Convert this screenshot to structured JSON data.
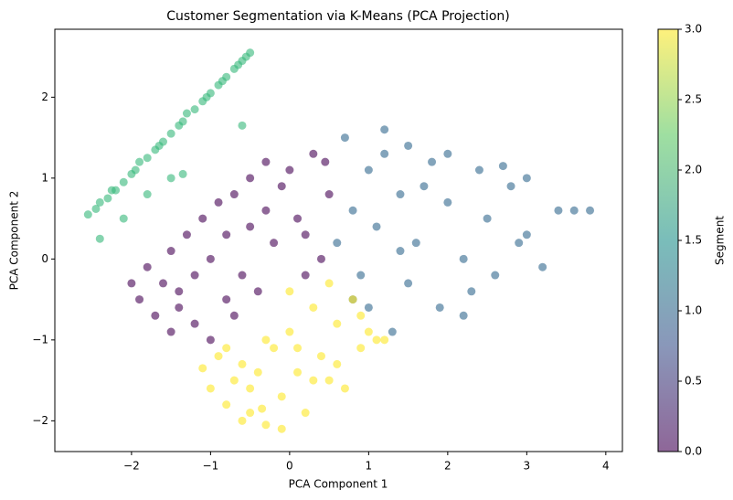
{
  "chart_data": {
    "type": "scatter",
    "title": "Customer Segmentation via K-Means (PCA Projection)",
    "x_label": "PCA Component 1",
    "y_label": "PCA Component 2",
    "xlim": [
      -2.97,
      4.21
    ],
    "ylim": [
      -2.38,
      2.84
    ],
    "xticks": [
      {
        "value": -2,
        "label": "−2"
      },
      {
        "value": -1,
        "label": "−1"
      },
      0,
      1,
      2,
      3,
      4
    ],
    "yticks": [
      {
        "value": -2,
        "label": "−2"
      },
      {
        "value": -1,
        "label": "−1"
      },
      0,
      1,
      2
    ],
    "opacity": 0.6,
    "series": [
      {
        "color": "#440154",
        "x": [
          -2.0,
          -1.9,
          -1.8,
          -1.7,
          -1.6,
          -1.5,
          -1.5,
          -1.4,
          -1.3,
          -1.2,
          -1.2,
          -1.1,
          -1.0,
          -1.0,
          -0.9,
          -0.8,
          -0.8,
          -0.7,
          -0.6,
          -0.5,
          -0.5,
          -0.4,
          -0.3,
          -0.2,
          -0.1,
          0.0,
          0.1,
          0.2,
          0.3,
          0.4,
          0.5,
          -0.3,
          0.2,
          -1.4,
          -0.7,
          0.45
        ],
        "y": [
          -0.3,
          -0.5,
          -0.1,
          -0.7,
          -0.3,
          0.1,
          -0.9,
          -0.4,
          0.3,
          -0.8,
          -0.2,
          0.5,
          -1.0,
          0.0,
          0.7,
          -0.5,
          0.3,
          0.8,
          -0.2,
          0.4,
          1.0,
          -0.4,
          0.6,
          0.2,
          0.9,
          1.1,
          0.5,
          0.3,
          1.3,
          0.0,
          0.8,
          1.2,
          -0.2,
          -0.6,
          -0.7,
          1.2
        ]
      },
      {
        "color": "#31688e",
        "x": [
          0.6,
          0.7,
          0.8,
          0.9,
          1.0,
          1.0,
          1.1,
          1.2,
          1.3,
          1.4,
          1.5,
          1.5,
          1.6,
          1.8,
          1.9,
          2.0,
          2.0,
          2.2,
          2.3,
          2.4,
          2.5,
          2.6,
          2.8,
          3.0,
          3.0,
          3.2,
          3.4,
          3.6,
          3.8,
          1.2,
          1.7,
          2.2,
          2.7,
          0.8,
          1.4,
          2.9
        ],
        "y": [
          0.2,
          1.5,
          0.6,
          -0.2,
          1.1,
          -0.6,
          0.4,
          1.3,
          -0.9,
          0.8,
          1.4,
          -0.3,
          0.2,
          1.2,
          -0.6,
          0.7,
          1.3,
          0.0,
          -0.4,
          1.1,
          0.5,
          -0.2,
          0.9,
          0.3,
          1.0,
          -0.1,
          0.6,
          0.6,
          0.6,
          1.6,
          0.9,
          -0.7,
          1.15,
          -0.5,
          0.1,
          0.2
        ]
      },
      {
        "color": "#35b779",
        "x": [
          -2.55,
          -2.45,
          -2.4,
          -2.3,
          -2.25,
          -2.2,
          -2.1,
          -2.0,
          -1.95,
          -1.9,
          -1.8,
          -1.7,
          -1.65,
          -1.6,
          -1.5,
          -1.4,
          -1.35,
          -1.3,
          -1.2,
          -1.1,
          -1.05,
          -1.0,
          -0.9,
          -0.85,
          -0.8,
          -0.7,
          -0.65,
          -0.6,
          -0.55,
          -0.5,
          -2.4,
          -2.1,
          -1.8,
          -1.5,
          -1.35,
          -0.6
        ],
        "y": [
          0.55,
          0.62,
          0.7,
          0.75,
          0.85,
          0.85,
          0.95,
          1.05,
          1.1,
          1.2,
          1.25,
          1.35,
          1.4,
          1.45,
          1.55,
          1.65,
          1.7,
          1.8,
          1.85,
          1.95,
          2.0,
          2.05,
          2.15,
          2.2,
          2.25,
          2.35,
          2.4,
          2.45,
          2.5,
          2.55,
          0.25,
          0.5,
          0.8,
          1.0,
          1.05,
          1.65
        ]
      },
      {
        "color": "#fde725",
        "x": [
          -1.1,
          -1.0,
          -0.9,
          -0.8,
          -0.7,
          -0.6,
          -0.5,
          -0.4,
          -0.3,
          -0.2,
          -0.1,
          0.0,
          0.1,
          0.2,
          0.3,
          0.4,
          0.5,
          0.6,
          0.7,
          0.8,
          0.9,
          1.0,
          1.1,
          1.2,
          -0.8,
          -0.5,
          -0.3,
          0.1,
          0.3,
          -0.1,
          0.5,
          0.6,
          -0.6,
          0.0,
          0.9,
          -0.35
        ],
        "y": [
          -1.35,
          -1.6,
          -1.2,
          -1.8,
          -1.5,
          -1.3,
          -1.9,
          -1.4,
          -2.05,
          -1.1,
          -1.7,
          -0.9,
          -1.4,
          -1.9,
          -0.6,
          -1.2,
          -0.3,
          -0.8,
          -1.6,
          -0.5,
          -1.1,
          -0.9,
          -1.0,
          -1.0,
          -1.1,
          -1.6,
          -1.0,
          -1.1,
          -1.5,
          -2.1,
          -1.5,
          -1.3,
          -2.0,
          -0.4,
          -0.7,
          -1.85
        ]
      }
    ],
    "colorbar": {
      "label": "Segment",
      "lim": [
        0,
        3
      ],
      "ticks": [
        {
          "value": 0,
          "label": "0.0"
        },
        {
          "value": 0.5,
          "label": "0.5"
        },
        {
          "value": 1,
          "label": "1.0"
        },
        {
          "value": 1.5,
          "label": "1.5"
        },
        {
          "value": 2,
          "label": "2.0"
        },
        {
          "value": 2.5,
          "label": "2.5"
        },
        {
          "value": 3,
          "label": "3.0"
        }
      ],
      "colors": [
        "#440154",
        "#3b528b",
        "#21918c",
        "#5ec962",
        "#fde725"
      ]
    }
  }
}
